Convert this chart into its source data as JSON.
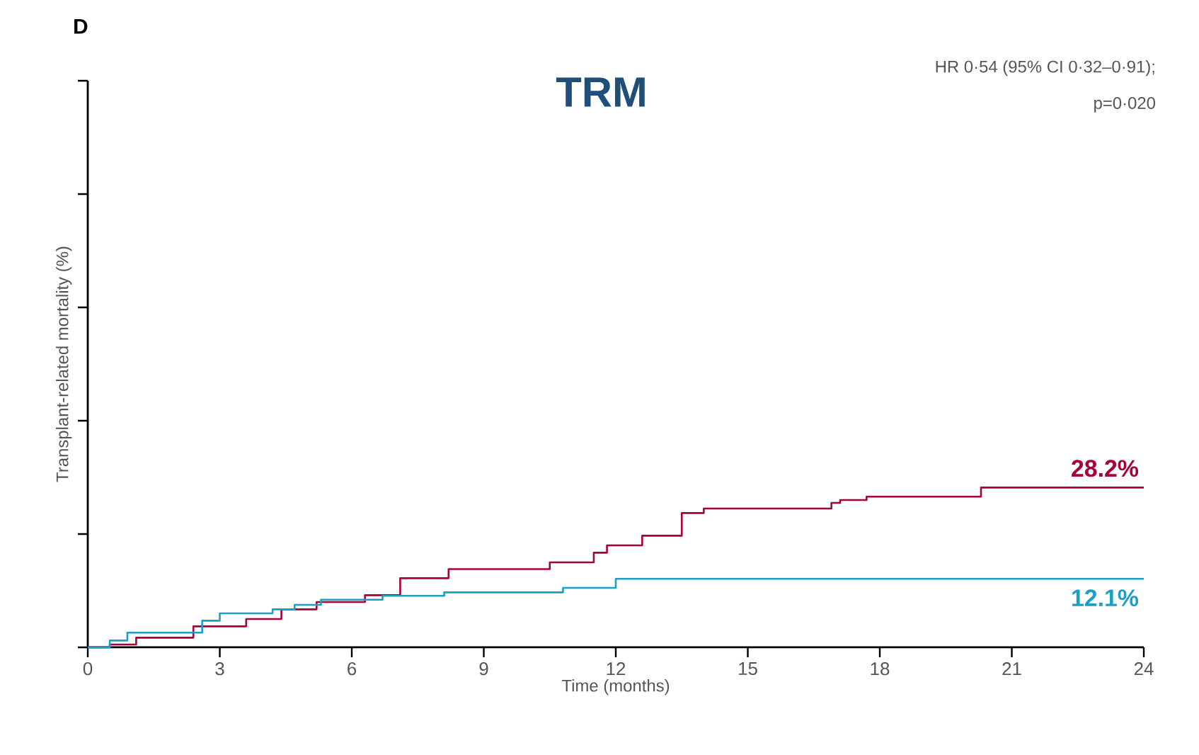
{
  "chart_data": {
    "type": "step",
    "title": "TRM",
    "annotations": [
      "D",
      "HR 0·54 (95% CI 0·32–0·91);",
      "p=0·020"
    ],
    "xlabel": "Time (months)",
    "ylabel": "Transplant-related mortality (%)",
    "xlim": [
      0,
      24
    ],
    "xticks": [
      0,
      3,
      6,
      9,
      12,
      15,
      18,
      21,
      24
    ],
    "ylim": [
      0,
      100
    ],
    "yticks": [
      {
        "value": 0,
        "label": null
      },
      {
        "value": 20,
        "label": null
      },
      {
        "value": 40,
        "label": null
      },
      {
        "value": 60,
        "label": null
      },
      {
        "value": 80,
        "label": null
      },
      {
        "value": 100,
        "label": null
      }
    ],
    "tick_labels": "x",
    "series": [
      {
        "color": "#a8003a",
        "x": [
          0,
          0.5,
          1.1,
          2.4,
          3.6,
          4.4,
          5.2,
          6.3,
          7.1,
          8.2,
          10.5,
          11.5,
          11.8,
          12.6,
          13.5,
          14.0,
          16.9,
          17.1,
          17.7,
          20.3,
          24
        ],
        "values": [
          0,
          0.5,
          1.7,
          3.7,
          5,
          6.7,
          8,
          9.2,
          12.2,
          13.8,
          15,
          16.7,
          18,
          19.7,
          23.7,
          24.5,
          25.5,
          26,
          26.6,
          28.2,
          28.2
        ],
        "value_labels": [
          null,
          null,
          null,
          null,
          null,
          null,
          null,
          null,
          null,
          null,
          null,
          null,
          null,
          null,
          null,
          null,
          null,
          null,
          null,
          null,
          "28.2%"
        ]
      },
      {
        "color": "#1a9fc6",
        "x": [
          0,
          0.5,
          0.9,
          2.6,
          3.0,
          4.2,
          4.7,
          5.3,
          6.7,
          8.1,
          10.8,
          12.0,
          24
        ],
        "values": [
          0,
          1.2,
          2.6,
          4.7,
          6,
          6.7,
          7.5,
          8.4,
          9.1,
          9.7,
          10.5,
          12.1,
          12.1
        ],
        "value_labels": [
          null,
          null,
          null,
          null,
          null,
          null,
          null,
          null,
          null,
          null,
          null,
          null,
          "12.1%"
        ]
      }
    ]
  }
}
